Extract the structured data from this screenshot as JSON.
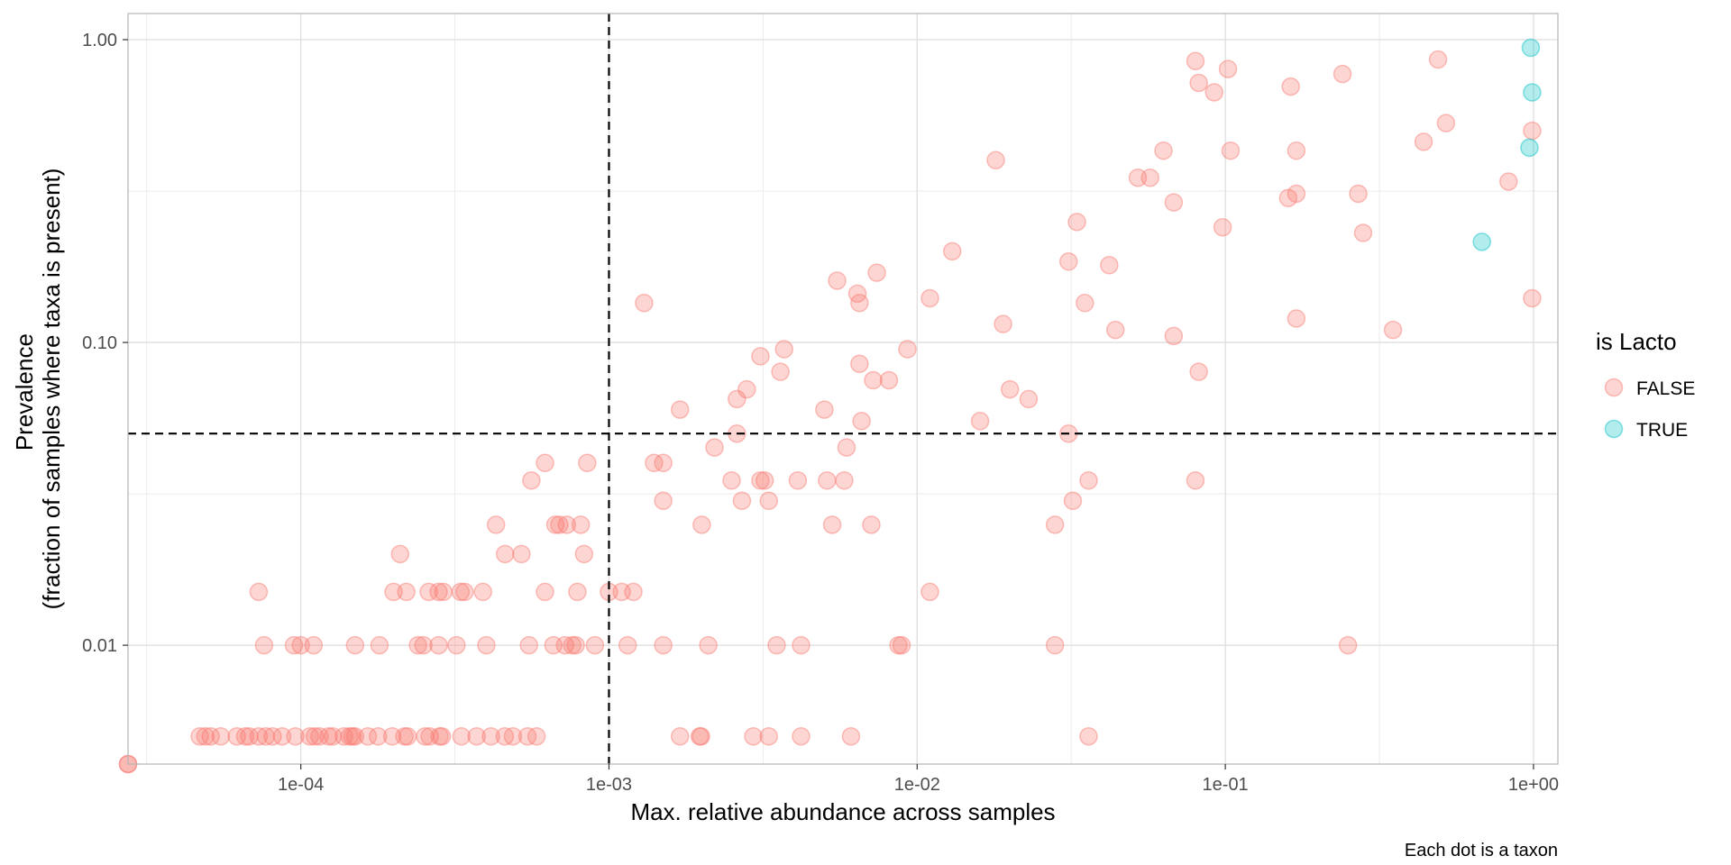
{
  "chart_data": {
    "type": "scatter",
    "xlabel": "Max. relative abundance across samples",
    "ylabel_lines": [
      "Prevalence",
      "(fraction of samples where taxa is present)"
    ],
    "caption": "Each dot is a taxon",
    "x_scale": "log10",
    "y_scale": "log10",
    "xlim": [
      2.75e-05,
      1.2
    ],
    "ylim": [
      0.00405,
      1.22
    ],
    "x_ticks": [
      0.0001,
      0.001,
      0.01,
      0.1,
      1
    ],
    "x_tick_labels": [
      "1e-04",
      "1e-03",
      "1e-02",
      "1e-01",
      "1e+00"
    ],
    "y_ticks": [
      0.01,
      0.1,
      1
    ],
    "y_tick_labels": [
      "0.01",
      "0.10",
      "1.00"
    ],
    "grid": true,
    "reference_lines": {
      "x": 0.001,
      "y": 0.05,
      "style": "dashed"
    },
    "legend": {
      "title": "is Lacto",
      "placement": "right",
      "entries": [
        {
          "label": "FALSE",
          "color": "#F8766D"
        },
        {
          "label": "TRUE",
          "color": "#00BFC4"
        }
      ]
    },
    "series": [
      {
        "name": "FALSE",
        "color": "#F8766D",
        "points": [
          [
            2.75e-05,
            0.004
          ],
          [
            2.75e-05,
            0.004
          ],
          [
            4.7e-05,
            0.005
          ],
          [
            4.9e-05,
            0.005
          ],
          [
            5.1e-05,
            0.005
          ],
          [
            5.5e-05,
            0.005
          ],
          [
            6.2e-05,
            0.005
          ],
          [
            6.6e-05,
            0.005
          ],
          [
            6.8e-05,
            0.005
          ],
          [
            7.3e-05,
            0.005
          ],
          [
            7.7e-05,
            0.005
          ],
          [
            8.1e-05,
            0.005
          ],
          [
            8.7e-05,
            0.005
          ],
          [
            9.6e-05,
            0.005
          ],
          [
            0.000107,
            0.005
          ],
          [
            0.000111,
            0.005
          ],
          [
            0.000115,
            0.005
          ],
          [
            0.000123,
            0.005
          ],
          [
            0.000127,
            0.005
          ],
          [
            0.000138,
            0.005
          ],
          [
            0.000144,
            0.005
          ],
          [
            0.000147,
            0.005
          ],
          [
            0.00015,
            0.005
          ],
          [
            0.000165,
            0.005
          ],
          [
            0.000178,
            0.005
          ],
          [
            0.000198,
            0.005
          ],
          [
            0.000217,
            0.005
          ],
          [
            0.000222,
            0.005
          ],
          [
            0.000253,
            0.005
          ],
          [
            0.000262,
            0.005
          ],
          [
            0.000282,
            0.005
          ],
          [
            0.000287,
            0.005
          ],
          [
            0.000332,
            0.005
          ],
          [
            0.000372,
            0.005
          ],
          [
            0.000414,
            0.005
          ],
          [
            0.000459,
            0.005
          ],
          [
            0.000488,
            0.005
          ],
          [
            0.000544,
            0.005
          ],
          [
            0.000582,
            0.005
          ],
          [
            0.0017,
            0.005
          ],
          [
            0.00197,
            0.005
          ],
          [
            0.00199,
            0.005
          ],
          [
            0.00294,
            0.005
          ],
          [
            0.0033,
            0.005
          ],
          [
            0.0042,
            0.005
          ],
          [
            0.0061,
            0.005
          ],
          [
            0.036,
            0.005
          ],
          [
            7.3e-05,
            0.015
          ],
          [
            7.6e-05,
            0.01
          ],
          [
            9.5e-05,
            0.01
          ],
          [
            0.0001,
            0.01
          ],
          [
            0.00011,
            0.01
          ],
          [
            0.00015,
            0.01
          ],
          [
            0.00018,
            0.01
          ],
          [
            0.0002,
            0.015
          ],
          [
            0.00022,
            0.015
          ],
          [
            0.00024,
            0.01
          ],
          [
            0.00025,
            0.01
          ],
          [
            0.00026,
            0.015
          ],
          [
            0.00028,
            0.01
          ],
          [
            0.00028,
            0.015
          ],
          [
            0.00029,
            0.015
          ],
          [
            0.00032,
            0.01
          ],
          [
            0.00033,
            0.015
          ],
          [
            0.00034,
            0.015
          ],
          [
            0.00039,
            0.015
          ],
          [
            0.0004,
            0.01
          ],
          [
            0.00055,
            0.01
          ],
          [
            0.00062,
            0.015
          ],
          [
            0.00066,
            0.01
          ],
          [
            0.00072,
            0.01
          ],
          [
            0.00076,
            0.01
          ],
          [
            0.00078,
            0.01
          ],
          [
            0.00079,
            0.015
          ],
          [
            0.0009,
            0.01
          ],
          [
            0.001,
            0.015
          ],
          [
            0.0011,
            0.015
          ],
          [
            0.00115,
            0.01
          ],
          [
            0.0012,
            0.015
          ],
          [
            0.0015,
            0.01
          ],
          [
            0.0021,
            0.01
          ],
          [
            0.0035,
            0.01
          ],
          [
            0.0042,
            0.01
          ],
          [
            0.0087,
            0.01
          ],
          [
            0.0089,
            0.01
          ],
          [
            0.011,
            0.015
          ],
          [
            0.028,
            0.01
          ],
          [
            0.25,
            0.01
          ],
          [
            0.00021,
            0.02
          ],
          [
            0.00043,
            0.025
          ],
          [
            0.00046,
            0.02
          ],
          [
            0.00052,
            0.02
          ],
          [
            0.00056,
            0.035
          ],
          [
            0.00062,
            0.04
          ],
          [
            0.00067,
            0.025
          ],
          [
            0.00069,
            0.025
          ],
          [
            0.00073,
            0.025
          ],
          [
            0.00081,
            0.025
          ],
          [
            0.00083,
            0.02
          ],
          [
            0.00085,
            0.04
          ],
          [
            0.0014,
            0.04
          ],
          [
            0.0015,
            0.03
          ],
          [
            0.0015,
            0.04
          ],
          [
            0.002,
            0.025
          ],
          [
            0.0022,
            0.045
          ],
          [
            0.0025,
            0.035
          ],
          [
            0.0026,
            0.05
          ],
          [
            0.0027,
            0.03
          ],
          [
            0.0031,
            0.035
          ],
          [
            0.0032,
            0.035
          ],
          [
            0.0033,
            0.03
          ],
          [
            0.0041,
            0.035
          ],
          [
            0.0051,
            0.035
          ],
          [
            0.0053,
            0.025
          ],
          [
            0.0058,
            0.035
          ],
          [
            0.0071,
            0.025
          ],
          [
            0.028,
            0.025
          ],
          [
            0.032,
            0.03
          ],
          [
            0.036,
            0.035
          ],
          [
            0.08,
            0.035
          ],
          [
            0.0013,
            0.135
          ],
          [
            0.0017,
            0.06
          ],
          [
            0.0026,
            0.065
          ],
          [
            0.0028,
            0.07
          ],
          [
            0.0031,
            0.09
          ],
          [
            0.0036,
            0.08
          ],
          [
            0.0037,
            0.095
          ],
          [
            0.005,
            0.06
          ],
          [
            0.0055,
            0.16
          ],
          [
            0.0059,
            0.045
          ],
          [
            0.0064,
            0.145
          ],
          [
            0.0065,
            0.135
          ],
          [
            0.0065,
            0.085
          ],
          [
            0.0066,
            0.055
          ],
          [
            0.0072,
            0.075
          ],
          [
            0.0074,
            0.17
          ],
          [
            0.0081,
            0.075
          ],
          [
            0.0093,
            0.095
          ],
          [
            0.011,
            0.14
          ],
          [
            0.013,
            0.2
          ],
          [
            0.016,
            0.055
          ],
          [
            0.018,
            0.4
          ],
          [
            0.019,
            0.115
          ],
          [
            0.02,
            0.07
          ],
          [
            0.023,
            0.065
          ],
          [
            0.031,
            0.185
          ],
          [
            0.031,
            0.05
          ],
          [
            0.033,
            0.25
          ],
          [
            0.035,
            0.135
          ],
          [
            0.042,
            0.18
          ],
          [
            0.044,
            0.11
          ],
          [
            0.052,
            0.35
          ],
          [
            0.057,
            0.35
          ],
          [
            0.063,
            0.43
          ],
          [
            0.068,
            0.29
          ],
          [
            0.068,
            0.105
          ],
          [
            0.08,
            0.85
          ],
          [
            0.082,
            0.72
          ],
          [
            0.082,
            0.08
          ],
          [
            0.092,
            0.67
          ],
          [
            0.098,
            0.24
          ],
          [
            0.102,
            0.8
          ],
          [
            0.104,
            0.43
          ],
          [
            0.16,
            0.3
          ],
          [
            0.163,
            0.7
          ],
          [
            0.17,
            0.12
          ],
          [
            0.17,
            0.31
          ],
          [
            0.17,
            0.43
          ],
          [
            0.24,
            0.77
          ],
          [
            0.27,
            0.31
          ],
          [
            0.28,
            0.23
          ],
          [
            0.35,
            0.11
          ],
          [
            0.44,
            0.46
          ],
          [
            0.49,
            0.86
          ],
          [
            0.52,
            0.53
          ],
          [
            0.83,
            0.34
          ],
          [
            0.99,
            0.5
          ],
          [
            0.99,
            0.14
          ]
        ]
      },
      {
        "name": "TRUE",
        "color": "#00BFC4",
        "points": [
          [
            0.98,
            0.94
          ],
          [
            0.99,
            0.67
          ],
          [
            0.97,
            0.44
          ],
          [
            0.68,
            0.215
          ]
        ]
      }
    ]
  }
}
